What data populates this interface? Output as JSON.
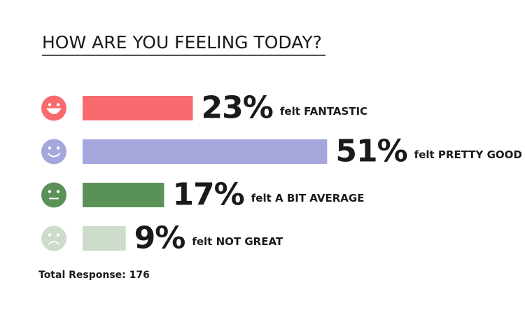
{
  "chart_data": {
    "type": "bar",
    "title": "HOW ARE YOU FEELING TODAY?",
    "categories": [
      "felt FANTASTIC",
      "felt PRETTY GOOD",
      "felt A BIT AVERAGE",
      "felt NOT GREAT"
    ],
    "values": [
      23,
      51,
      17,
      9
    ],
    "value_labels": [
      "23%",
      "51%",
      "17%",
      "9%"
    ],
    "colors": [
      "#f86a6e",
      "#a4a6dc",
      "#5a9157",
      "#cddccb"
    ],
    "footer": "Total Response: 176"
  }
}
